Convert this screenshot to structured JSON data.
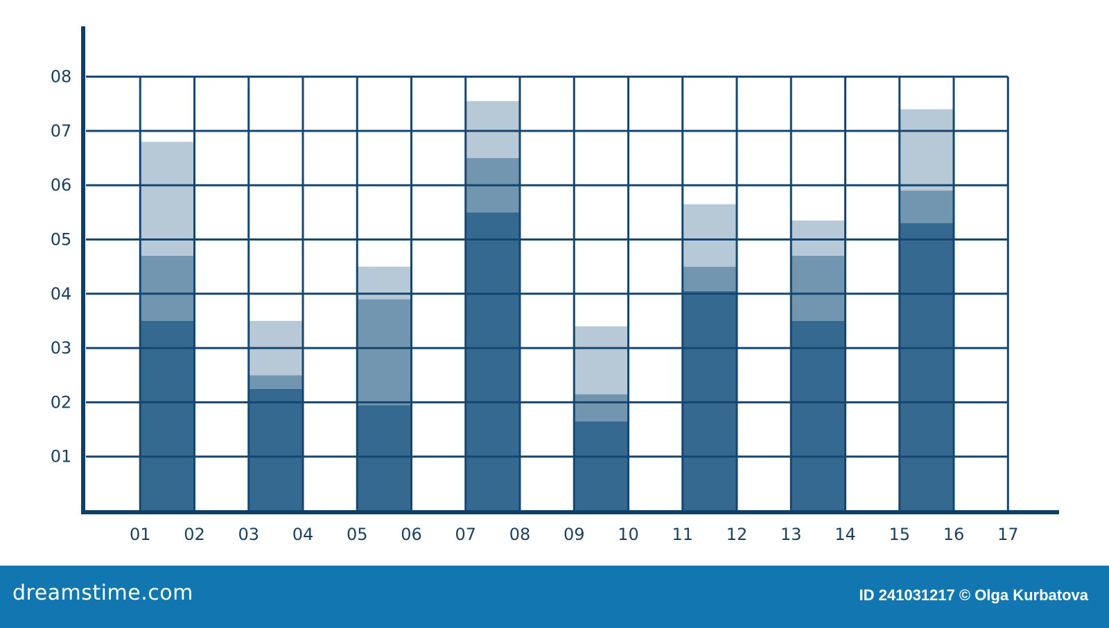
{
  "chart_data": {
    "type": "bar",
    "stacked": true,
    "x_tick_labels": [
      "01",
      "02",
      "03",
      "04",
      "05",
      "06",
      "07",
      "08",
      "09",
      "10",
      "11",
      "12",
      "13",
      "14",
      "15",
      "16",
      "17"
    ],
    "y_tick_labels": [
      "01",
      "02",
      "03",
      "04",
      "05",
      "06",
      "07",
      "08"
    ],
    "ylim": [
      0,
      8
    ],
    "grid": true,
    "bars": [
      {
        "x_start": 1,
        "x_end": 2,
        "stack": [
          3.5,
          1.2,
          2.1
        ]
      },
      {
        "x_start": 3,
        "x_end": 4,
        "stack": [
          2.25,
          0.25,
          1.0
        ]
      },
      {
        "x_start": 5,
        "x_end": 6,
        "stack": [
          1.95,
          1.95,
          0.6
        ]
      },
      {
        "x_start": 7,
        "x_end": 8,
        "stack": [
          5.5,
          1.0,
          1.05
        ]
      },
      {
        "x_start": 9,
        "x_end": 10,
        "stack": [
          1.65,
          0.5,
          1.25
        ]
      },
      {
        "x_start": 11,
        "x_end": 12,
        "stack": [
          4.05,
          0.45,
          1.15
        ]
      },
      {
        "x_start": 13,
        "x_end": 14,
        "stack": [
          3.5,
          1.2,
          0.65
        ]
      },
      {
        "x_start": 15,
        "x_end": 16,
        "stack": [
          5.3,
          0.6,
          1.5
        ]
      }
    ]
  },
  "colors": {
    "axis": "#0f3f66",
    "grid": "#14466f",
    "segments": [
      "#35698f",
      "#7396b0",
      "#b7c9d7"
    ],
    "footer_bg": "#1277b0",
    "tick_text": "#1a3f5f"
  },
  "footer": {
    "brand": "dreamstime.com",
    "credit": "ID 241031217 © Olga Kurbatova"
  }
}
